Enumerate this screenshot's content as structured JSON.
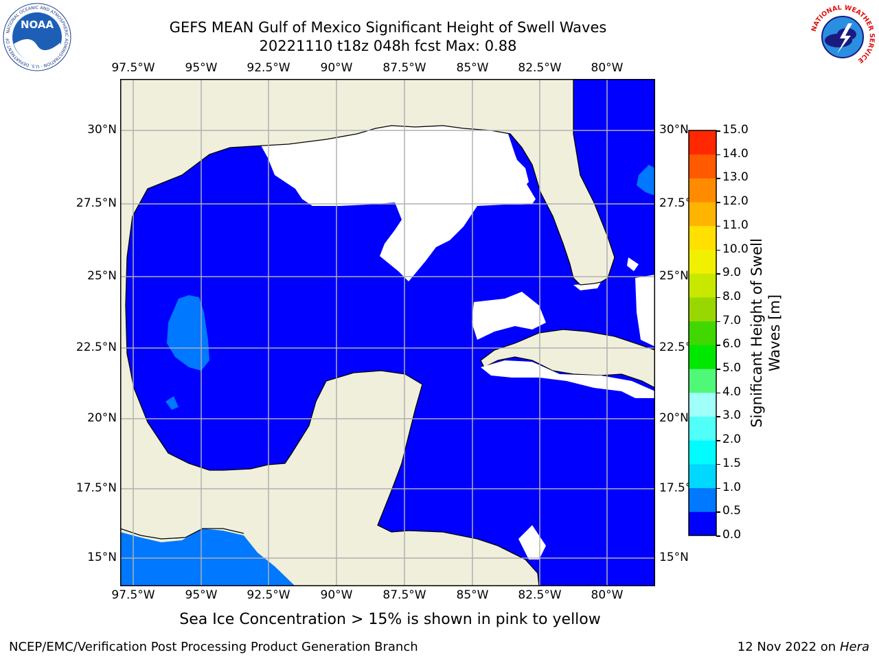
{
  "title": {
    "line1": "GEFS MEAN Gulf of Mexico Significant Height of Swell Waves",
    "line2": "20221110 t18z 048h fcst   Max: 0.88"
  },
  "map": {
    "lon_labels": [
      "97.5°W",
      "95°W",
      "92.5°W",
      "90°W",
      "87.5°W",
      "85°W",
      "82.5°W",
      "80°W"
    ],
    "lat_labels": [
      "30°N",
      "27.5°N",
      "25°N",
      "22.5°N",
      "20°N",
      "17.5°N",
      "15°N"
    ],
    "colors": {
      "land": "#efefdc",
      "sea_low": "#0000ff",
      "sea_mid": "#0078ff",
      "no_swell": "#ffffff",
      "grid": "#b0b0b0"
    }
  },
  "colorbar": {
    "label": "Significant Height of Swell Waves [m]",
    "ticks": [
      "0.0",
      "0.5",
      "1.0",
      "1.5",
      "2.0",
      "3.0",
      "4.0",
      "5.0",
      "6.0",
      "7.0",
      "8.0",
      "9.0",
      "10.0",
      "11.0",
      "12.0",
      "13.0",
      "14.0",
      "15.0"
    ],
    "colors": [
      "#0000ff",
      "#0078ff",
      "#00d8ff",
      "#00fcff",
      "#50fff8",
      "#a0fff8",
      "#50f878",
      "#00e800",
      "#40d800",
      "#98d800",
      "#c8e800",
      "#f0f000",
      "#ffe000",
      "#ffb400",
      "#ff8c00",
      "#ff5a00",
      "#ff2800",
      "#ff0000"
    ]
  },
  "caption": "Sea Ice Concentration > 15% is shown in pink to yellow",
  "footer": {
    "left": "NCEP/EMC/Verification Post Processing Product Generation Branch",
    "date": "12 Nov 2022 on",
    "host": "Hera"
  },
  "logos": {
    "left_text": "NOAA",
    "left_ring": "NATIONAL OCEANIC AND ATMOSPHERIC ADMINISTRATION · U.S. DEPARTMENT OF COMMERCE",
    "right_ring": "NATIONAL WEATHER SERVICE"
  }
}
